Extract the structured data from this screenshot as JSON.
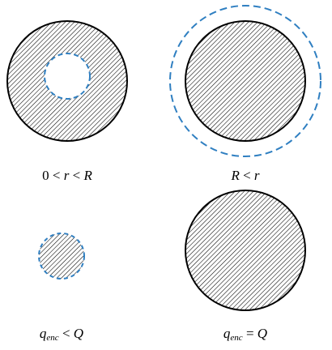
{
  "colors": {
    "sphere_fill_hatch": "#000000",
    "sphere_outline": "#000000",
    "gaussian_surface": "#2f7fc1",
    "background": "#ffffff"
  },
  "panels": [
    {
      "id": "top-left",
      "caption": {
        "p1": "0 < ",
        "v1": "r",
        "p2": " < ",
        "v2": "R"
      },
      "gaussian_surface": "dashed circle inside sphere"
    },
    {
      "id": "top-right",
      "caption": {
        "v1": "R",
        "p1": " < ",
        "v2": "r"
      },
      "gaussian_surface": "dashed circle outside sphere"
    },
    {
      "id": "bottom-left",
      "caption": {
        "q": "q",
        "sub": "enc",
        "op": " < ",
        "v": "Q"
      },
      "gaussian_surface": "hatched region bounded by dashed circle"
    },
    {
      "id": "bottom-right",
      "caption": {
        "q": "q",
        "sub": "enc",
        "op": " = ",
        "v": "Q"
      },
      "gaussian_surface": "none"
    }
  ]
}
